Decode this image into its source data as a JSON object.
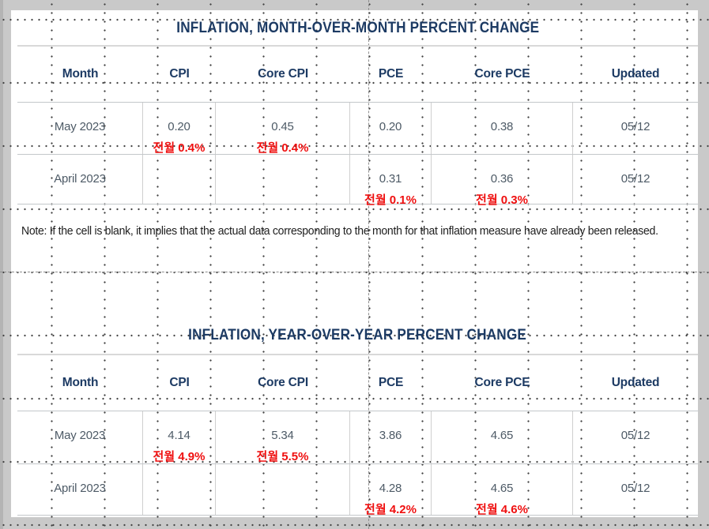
{
  "page": {
    "outer_background": "#c9c9c9",
    "panel_background": "#ffffff",
    "left_edge_strip": "#b4b4b4"
  },
  "colors": {
    "heading_navy": "#1c3a63",
    "data_slate": "#4d5a66",
    "annotation_red": "#ef1010",
    "grid_dot": "#414141",
    "row_border": "#c3c7ca",
    "column_border": "#cfcfcf",
    "title_underline": "#d9d9d9",
    "page_break_dash": "#8f8f8f",
    "note_text": "#202020"
  },
  "tables": [
    {
      "title": "INFLATION, MONTH-OVER-MONTH PERCENT CHANGE",
      "columns": [
        "Month",
        "CPI",
        "Core CPI",
        "PCE",
        "Core PCE",
        "Updated"
      ],
      "rows": [
        {
          "cells": [
            {
              "value": "May 2023",
              "annotation": ""
            },
            {
              "value": "0.20",
              "annotation": "전월 0.4%"
            },
            {
              "value": "0.45",
              "annotation": "전월 0.4%"
            },
            {
              "value": "0.20",
              "annotation": ""
            },
            {
              "value": "0.38",
              "annotation": ""
            },
            {
              "value": "05/12",
              "annotation": ""
            }
          ]
        },
        {
          "cells": [
            {
              "value": "April 2023",
              "annotation": ""
            },
            {
              "value": "",
              "annotation": ""
            },
            {
              "value": "",
              "annotation": ""
            },
            {
              "value": "0.31",
              "annotation": "전월 0.1%"
            },
            {
              "value": "0.36",
              "annotation": "전월 0.3%"
            },
            {
              "value": "05/12",
              "annotation": ""
            }
          ]
        }
      ]
    },
    {
      "title": "INFLATION, YEAR-OVER-YEAR PERCENT CHANGE",
      "columns": [
        "Month",
        "CPI",
        "Core CPI",
        "PCE",
        "Core PCE",
        "Updated"
      ],
      "rows": [
        {
          "cells": [
            {
              "value": "May 2023",
              "annotation": ""
            },
            {
              "value": "4.14",
              "annotation": "전월 4.9%"
            },
            {
              "value": "5.34",
              "annotation": "전월 5.5%"
            },
            {
              "value": "3.86",
              "annotation": ""
            },
            {
              "value": "4.65",
              "annotation": ""
            },
            {
              "value": "05/12",
              "annotation": ""
            }
          ]
        },
        {
          "cells": [
            {
              "value": "April 2023",
              "annotation": ""
            },
            {
              "value": "",
              "annotation": ""
            },
            {
              "value": "",
              "annotation": ""
            },
            {
              "value": "4.28",
              "annotation": "전월 4.2%"
            },
            {
              "value": "4.65",
              "annotation": "전월 4.6%"
            },
            {
              "value": "05/12",
              "annotation": ""
            }
          ]
        }
      ]
    }
  ],
  "note": "Note: If the cell is blank, it implies that the actual data corresponding to the month for that inflation measure have already been released."
}
